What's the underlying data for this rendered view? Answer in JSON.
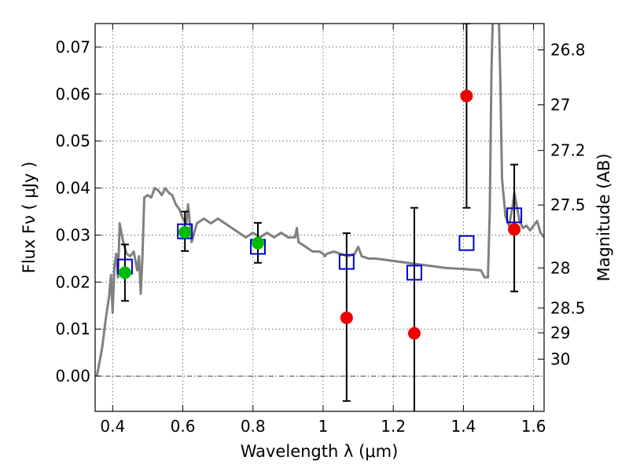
{
  "chart_data": {
    "type": "scatter",
    "xlabel": "Wavelength  λ (μm)",
    "ylabel": "Flux  Fν  ( μJy )",
    "y2label": "Magnitude (AB)",
    "xlim": [
      0.35,
      1.63
    ],
    "ylim": [
      -0.0075,
      0.075
    ],
    "grid": true,
    "x_ticks": [
      0.4,
      0.6,
      0.8,
      1.0,
      1.2,
      1.4,
      1.6
    ],
    "x_tick_labels": [
      "0.4",
      "0.6",
      "0.8",
      "1",
      "1.2",
      "1.4",
      "1.6"
    ],
    "y_ticks": [
      0.0,
      0.01,
      0.02,
      0.03,
      0.04,
      0.05,
      0.06,
      0.07
    ],
    "y_tick_labels": [
      "0.00",
      "0.01",
      "0.02",
      "0.03",
      "0.04",
      "0.05",
      "0.06",
      "0.07"
    ],
    "mag_ticks": [
      {
        "label": "26.8",
        "flux": 0.0694
      },
      {
        "label": "27",
        "flux": 0.0577
      },
      {
        "label": "27.2",
        "flux": 0.048
      },
      {
        "label": "27.5",
        "flux": 0.0364
      },
      {
        "label": "28",
        "flux": 0.023
      },
      {
        "label": "28.5",
        "flux": 0.0145
      },
      {
        "label": "29",
        "flux": 0.0092
      },
      {
        "label": "30",
        "flux": 0.0036
      }
    ],
    "colors": {
      "model": "#808080",
      "box": "#0000cc",
      "green": "#00bb00",
      "red": "#ee0000",
      "errorbar": "#000000"
    },
    "model_spectrum": [
      [
        0.355,
        0.0
      ],
      [
        0.36,
        0.002
      ],
      [
        0.37,
        0.006
      ],
      [
        0.38,
        0.012
      ],
      [
        0.39,
        0.017
      ],
      [
        0.395,
        0.0215
      ],
      [
        0.4,
        0.0135
      ],
      [
        0.405,
        0.0235
      ],
      [
        0.41,
        0.026
      ],
      [
        0.415,
        0.021
      ],
      [
        0.42,
        0.0325
      ],
      [
        0.43,
        0.0285
      ],
      [
        0.44,
        0.026
      ],
      [
        0.45,
        0.0255
      ],
      [
        0.46,
        0.0265
      ],
      [
        0.47,
        0.0225
      ],
      [
        0.475,
        0.0255
      ],
      [
        0.48,
        0.0175
      ],
      [
        0.485,
        0.0255
      ],
      [
        0.49,
        0.038
      ],
      [
        0.5,
        0.0385
      ],
      [
        0.51,
        0.038
      ],
      [
        0.52,
        0.04
      ],
      [
        0.53,
        0.0395
      ],
      [
        0.54,
        0.0385
      ],
      [
        0.55,
        0.04
      ],
      [
        0.56,
        0.039
      ],
      [
        0.57,
        0.0385
      ],
      [
        0.58,
        0.0365
      ],
      [
        0.59,
        0.0355
      ],
      [
        0.6,
        0.0335
      ],
      [
        0.61,
        0.0325
      ],
      [
        0.615,
        0.0365
      ],
      [
        0.625,
        0.0285
      ],
      [
        0.64,
        0.0325
      ],
      [
        0.66,
        0.0335
      ],
      [
        0.68,
        0.0325
      ],
      [
        0.7,
        0.0335
      ],
      [
        0.72,
        0.0325
      ],
      [
        0.74,
        0.0315
      ],
      [
        0.76,
        0.0305
      ],
      [
        0.78,
        0.0295
      ],
      [
        0.8,
        0.0305
      ],
      [
        0.82,
        0.0295
      ],
      [
        0.84,
        0.0305
      ],
      [
        0.86,
        0.0295
      ],
      [
        0.88,
        0.0305
      ],
      [
        0.9,
        0.0295
      ],
      [
        0.92,
        0.0295
      ],
      [
        0.925,
        0.0315
      ],
      [
        0.93,
        0.0285
      ],
      [
        0.95,
        0.0275
      ],
      [
        0.97,
        0.0265
      ],
      [
        0.99,
        0.0265
      ],
      [
        1.0,
        0.026
      ],
      [
        1.005,
        0.0255
      ],
      [
        1.01,
        0.026
      ],
      [
        1.03,
        0.0265
      ],
      [
        1.05,
        0.026
      ],
      [
        1.07,
        0.0255
      ],
      [
        1.09,
        0.026
      ],
      [
        1.1,
        0.0275
      ],
      [
        1.11,
        0.0255
      ],
      [
        1.13,
        0.025
      ],
      [
        1.15,
        0.025
      ],
      [
        1.2,
        0.0245
      ],
      [
        1.25,
        0.024
      ],
      [
        1.3,
        0.0235
      ],
      [
        1.35,
        0.023
      ],
      [
        1.4,
        0.0228
      ],
      [
        1.45,
        0.0225
      ],
      [
        1.46,
        0.021
      ],
      [
        1.47,
        0.021
      ],
      [
        1.475,
        0.035
      ],
      [
        1.48,
        0.065
      ],
      [
        1.485,
        0.08
      ],
      [
        1.5,
        0.08
      ],
      [
        1.505,
        0.064
      ],
      [
        1.51,
        0.042
      ],
      [
        1.52,
        0.034
      ],
      [
        1.53,
        0.032
      ],
      [
        1.54,
        0.036
      ],
      [
        1.545,
        0.039
      ],
      [
        1.55,
        0.037
      ],
      [
        1.56,
        0.033
      ],
      [
        1.57,
        0.0315
      ],
      [
        1.58,
        0.032
      ],
      [
        1.59,
        0.031
      ],
      [
        1.6,
        0.032
      ],
      [
        1.61,
        0.033
      ],
      [
        1.62,
        0.0305
      ],
      [
        1.63,
        0.0295
      ]
    ],
    "model_photometry": [
      {
        "x": 0.435,
        "y": 0.0233
      },
      {
        "x": 0.606,
        "y": 0.0308
      },
      {
        "x": 0.814,
        "y": 0.0275
      },
      {
        "x": 1.067,
        "y": 0.0243
      },
      {
        "x": 1.26,
        "y": 0.022
      },
      {
        "x": 1.409,
        "y": 0.0283
      },
      {
        "x": 1.545,
        "y": 0.0342
      }
    ],
    "detections": [
      {
        "x": 0.435,
        "y": 0.022,
        "err_lo": 0.006,
        "err_hi": 0.006
      },
      {
        "x": 0.606,
        "y": 0.0306,
        "err_lo": 0.004,
        "err_hi": 0.0044
      },
      {
        "x": 0.814,
        "y": 0.0283,
        "err_lo": 0.0042,
        "err_hi": 0.0043
      }
    ],
    "low_significance": [
      {
        "x": 1.067,
        "y": 0.0124,
        "err_lo": 0.0177,
        "err_hi": 0.018
      },
      {
        "x": 1.26,
        "y": 0.0091,
        "err_lo": 0.0191,
        "err_hi": 0.0267
      },
      {
        "x": 1.409,
        "y": 0.0596,
        "err_lo": 0.0238,
        "err_hi": 0.0154
      },
      {
        "x": 1.545,
        "y": 0.0312,
        "err_lo": 0.0132,
        "err_hi": 0.0138
      }
    ]
  }
}
